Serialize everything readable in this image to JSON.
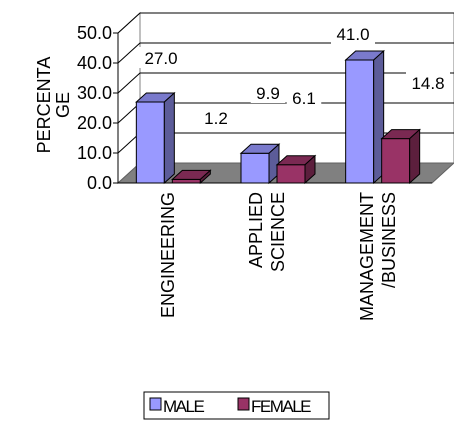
{
  "chart_data": {
    "type": "bar",
    "ylabel_lines": [
      "PERCENTA",
      "GE"
    ],
    "ylim": [
      0,
      50
    ],
    "yticks": [
      "0.0",
      "10.0",
      "20.0",
      "30.0",
      "40.0",
      "50.0"
    ],
    "categories": [
      {
        "lines": [
          "ENGINEERING"
        ]
      },
      {
        "lines": [
          "APPLIED",
          "SCIENCE"
        ]
      },
      {
        "lines": [
          "MANAGEMENT",
          "/BUSINESS"
        ]
      }
    ],
    "series": [
      {
        "name": "MALE",
        "values": [
          27.0,
          9.9,
          41.0
        ],
        "labels": [
          "27.0",
          "9.9",
          "41.0"
        ],
        "color": "#9999ff"
      },
      {
        "name": "FEMALE",
        "values": [
          1.2,
          6.1,
          14.8
        ],
        "labels": [
          "1.2",
          "6.1",
          "14.8"
        ],
        "color": "#993366"
      }
    ],
    "grid": true,
    "style": "3d-column",
    "legend_position": "bottom"
  }
}
